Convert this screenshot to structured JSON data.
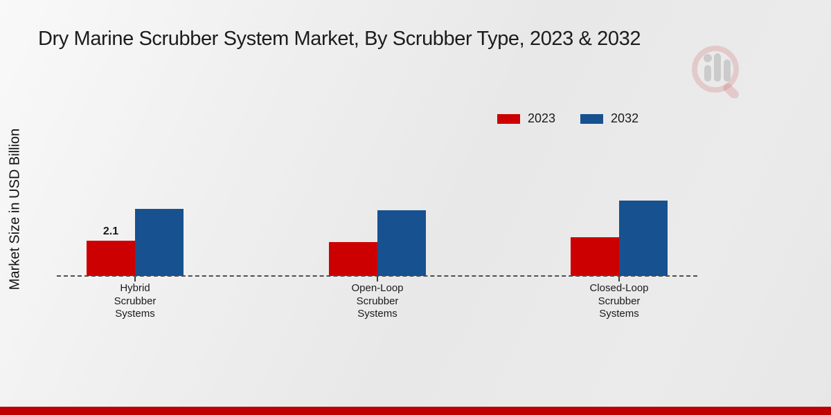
{
  "title": "Dry Marine Scrubber System Market, By Scrubber Type, 2023 & 2032",
  "y_axis_label": "Market Size in USD Billion",
  "legend": {
    "position": "top-right",
    "items": [
      "2023",
      "2032"
    ]
  },
  "chart_data": {
    "type": "bar",
    "title": "Dry Marine Scrubber System Market, By Scrubber Type, 2023 & 2032",
    "xlabel": "",
    "ylabel": "Market Size in USD Billion",
    "categories": [
      "Hybrid Scrubber Systems",
      "Open-Loop Scrubber Systems",
      "Closed-Loop Scrubber Systems"
    ],
    "series": [
      {
        "name": "2023",
        "color": "#cc0001",
        "values": [
          2.1,
          2.0,
          2.3
        ],
        "bar_labels": [
          "2.1",
          "",
          ""
        ]
      },
      {
        "name": "2032",
        "color": "#17518f",
        "values": [
          4.0,
          3.9,
          4.5
        ],
        "bar_labels": [
          "",
          "",
          ""
        ]
      }
    ],
    "grid": false,
    "baseline_style": "dashed",
    "legend_position": "top-right"
  },
  "colors": {
    "bar_2023": "#cc0001",
    "bar_2032": "#17518f",
    "baseline": "#4d4d4d",
    "text": "#1a1a1a",
    "footer_strip": "#bf0000",
    "watermark_ring": "rgba(197,62,62,0.20)",
    "watermark_bars": "rgba(148,148,148,0.40)"
  }
}
